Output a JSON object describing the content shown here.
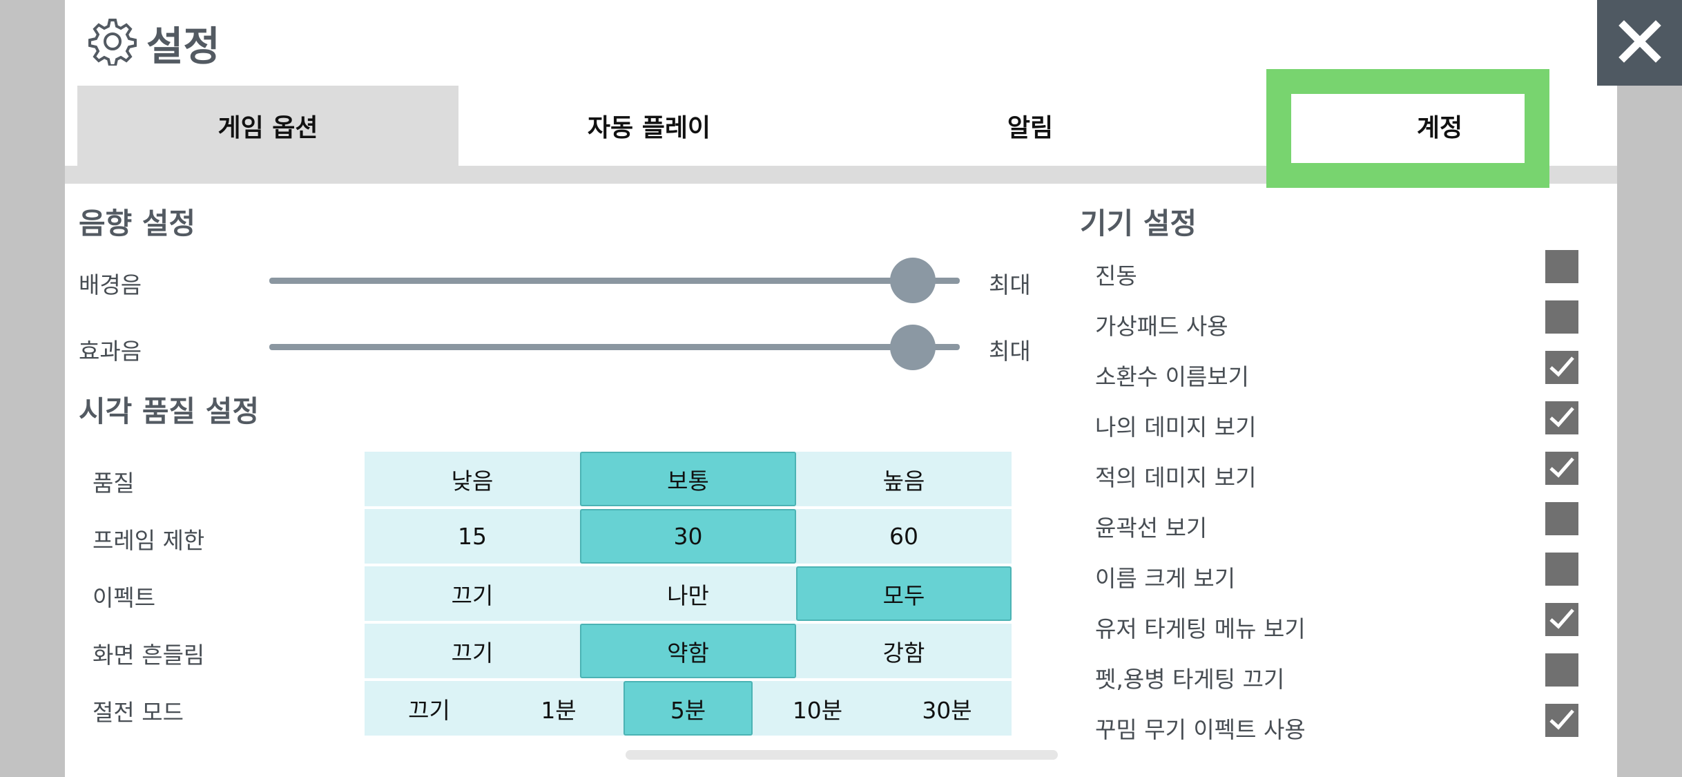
{
  "header": {
    "title": "설정",
    "title_icon": "gear-icon",
    "close_icon": "close-icon"
  },
  "tabs": [
    {
      "label": "게임 옵션",
      "active": true
    },
    {
      "label": "자동 플레이",
      "active": false
    },
    {
      "label": "알림",
      "active": false
    },
    {
      "label": "계정",
      "active": false,
      "highlighted": true
    }
  ],
  "sound": {
    "title": "음향 설정",
    "sliders": [
      {
        "label": "배경음",
        "value_label": "최대",
        "level": 1.0
      },
      {
        "label": "효과음",
        "value_label": "최대",
        "level": 1.0
      }
    ]
  },
  "visual": {
    "title": "시각 품질 설정",
    "rows": [
      {
        "label": "품질",
        "options": [
          "낮음",
          "보통",
          "높음"
        ],
        "selected": 1
      },
      {
        "label": "프레임 제한",
        "options": [
          "15",
          "30",
          "60"
        ],
        "selected": 1
      },
      {
        "label": "이펙트",
        "options": [
          "끄기",
          "나만",
          "모두"
        ],
        "selected": 2
      },
      {
        "label": "화면 흔들림",
        "options": [
          "끄기",
          "약함",
          "강함"
        ],
        "selected": 1
      },
      {
        "label": "절전 모드",
        "options": [
          "끄기",
          "1분",
          "5분",
          "10분",
          "30분"
        ],
        "selected": 2
      }
    ]
  },
  "device": {
    "title": "기기 설정",
    "items": [
      {
        "label": "진동",
        "checked": false
      },
      {
        "label": "가상패드 사용",
        "checked": false
      },
      {
        "label": "소환수 이름보기",
        "checked": true
      },
      {
        "label": "나의 데미지 보기",
        "checked": true
      },
      {
        "label": "적의 데미지 보기",
        "checked": true
      },
      {
        "label": "윤곽선 보기",
        "checked": false
      },
      {
        "label": "이름 크게 보기",
        "checked": false
      },
      {
        "label": "유저 타게팅 메뉴 보기",
        "checked": true
      },
      {
        "label": "펫,용병 타게팅 끄기",
        "checked": false
      },
      {
        "label": "꾸밈 무기 이펙트 사용",
        "checked": true
      }
    ]
  },
  "colors": {
    "accent_selected": "#67d2d3",
    "option_bg": "#dcf3f6",
    "tab_highlight": "#78d46f",
    "close_bg": "#4f5962"
  }
}
